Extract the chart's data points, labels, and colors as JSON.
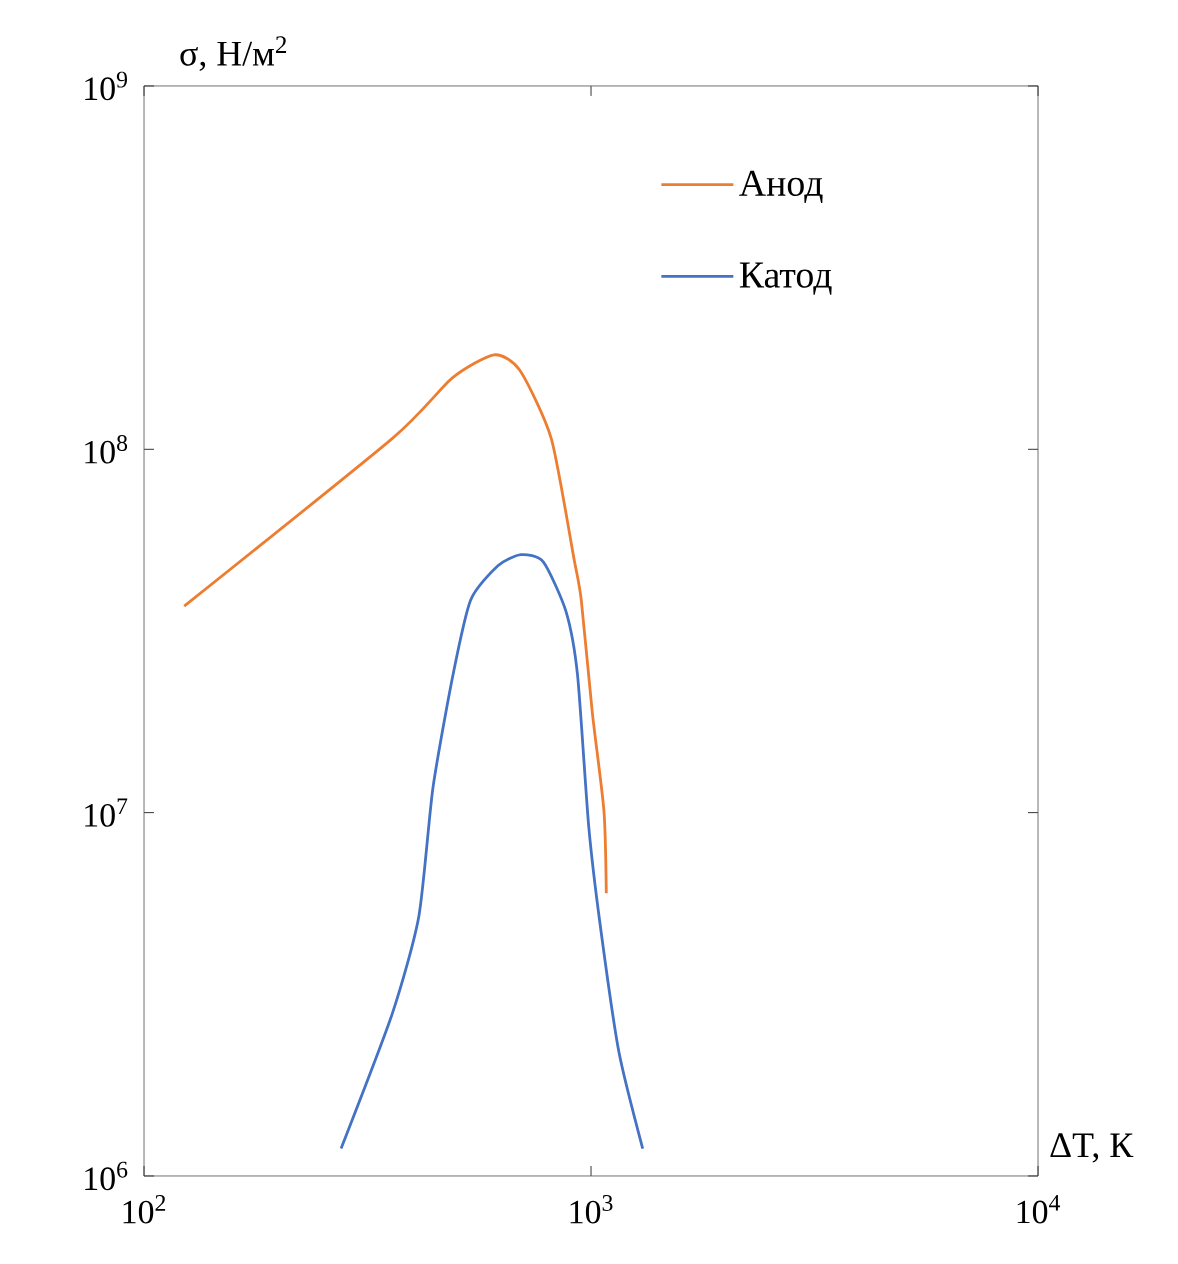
{
  "chart_data": {
    "type": "line",
    "xlabel": "ΔT, К",
    "ylabel": "σ, Н/м$^{2}$",
    "log": "xy",
    "xlim": [
      100,
      10000
    ],
    "ylim": [
      1000000,
      1000000000
    ],
    "xticks": [
      {
        "value": 100,
        "label": "10$^{2}$"
      },
      {
        "value": 1000,
        "label": "10$^{3}$"
      },
      {
        "value": 10000,
        "label": "10$^{4}$"
      }
    ],
    "yticks": [
      {
        "value": 1000000,
        "label": "10$^{6}$"
      },
      {
        "value": 10000000,
        "label": "10$^{7}$"
      },
      {
        "value": 100000000,
        "label": "10$^{8}$"
      },
      {
        "value": 1000000000,
        "label": "10$^{9}$"
      }
    ],
    "legend": "top right",
    "series": [
      {
        "name": "Анод",
        "color": "#ed7d31",
        "x": [
          123,
          359,
          489,
          607,
          693,
          815,
          916,
          951,
          1007,
          1069,
          1082
        ],
        "values": [
          37000000,
          107000000,
          157000000,
          182000000,
          165000000,
          107000000,
          50000000,
          38500000,
          18800000,
          10100000,
          6000000
        ]
      },
      {
        "name": "Катод",
        "color": "#4472c4",
        "x": [
          276,
          359,
          412,
          443,
          491,
          538,
          619,
          697,
          782,
          879,
          933,
          988,
          1047,
          1154,
          1305
        ],
        "values": [
          1190000,
          2790000,
          5190000,
          11700000,
          23900000,
          38500000,
          47800000,
          51300000,
          49000000,
          35800000,
          23900000,
          9200000,
          4970000,
          2200000,
          1190000
        ]
      }
    ]
  }
}
